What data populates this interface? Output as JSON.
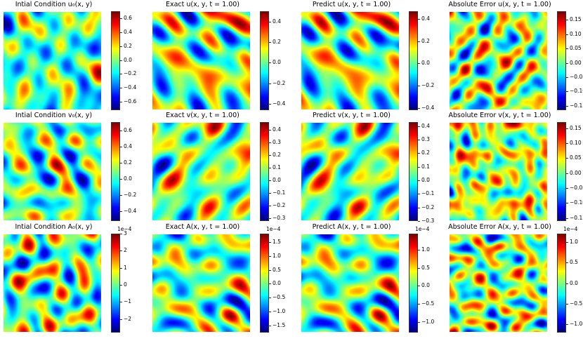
{
  "chart_data": {
    "type": "heatmap",
    "colormap": "jet",
    "rows": 3,
    "cols": 4,
    "panels": [
      {
        "title": "Intial Condition u₀(x, y)",
        "ticks": [
          "0.6",
          "0.4",
          "0.2",
          "0.0",
          "−0.2",
          "−0.4",
          "−0.6"
        ],
        "tick_values": [
          0.6,
          0.4,
          0.2,
          0.0,
          -0.2,
          -0.4,
          -0.6
        ],
        "range": [
          -0.72,
          0.7
        ],
        "offset": "",
        "seed": 11
      },
      {
        "title": "Exact u(x, y, t = 1.00)",
        "ticks": [
          "0.4",
          "0.2",
          "0.0",
          "−0.2",
          "−0.4"
        ],
        "tick_values": [
          0.4,
          0.2,
          0.0,
          -0.2,
          -0.4
        ],
        "range": [
          -0.46,
          0.5
        ],
        "offset": "",
        "seed": 23
      },
      {
        "title": "Predict u(x, y, t = 1.00)",
        "ticks": [
          "0.4",
          "0.2",
          "0.0",
          "−0.2",
          "−0.4"
        ],
        "tick_values": [
          0.4,
          0.2,
          0.0,
          -0.2,
          -0.4
        ],
        "range": [
          -0.42,
          0.47
        ],
        "offset": "",
        "seed": 23
      },
      {
        "title": "Absolute Error u(x, y, t = 1.00)",
        "ticks": [
          "0.15",
          "0.10",
          "0.05",
          "0.00",
          "−0.05",
          "−0.10",
          "−0.15"
        ],
        "tick_values": [
          0.15,
          0.1,
          0.05,
          0.0,
          -0.05,
          -0.1,
          -0.15
        ],
        "range": [
          -0.165,
          0.18
        ],
        "offset": "",
        "seed": 37
      },
      {
        "title": "Intial Condition v₀(x, y)",
        "ticks": [
          "0.6",
          "0.4",
          "0.2",
          "0.0",
          "−0.2",
          "−0.4"
        ],
        "tick_values": [
          0.6,
          0.4,
          0.2,
          0.0,
          -0.2,
          -0.4
        ],
        "range": [
          -0.52,
          0.7
        ],
        "offset": "",
        "seed": 41
      },
      {
        "title": "Exact v(x, y, t = 1.00)",
        "ticks": [
          "0.4",
          "0.3",
          "0.2",
          "0.1",
          "0.0",
          "−0.1",
          "−0.2",
          "−0.3"
        ],
        "tick_values": [
          0.4,
          0.3,
          0.2,
          0.1,
          0.0,
          -0.1,
          -0.2,
          -0.3
        ],
        "range": [
          -0.32,
          0.46
        ],
        "offset": "",
        "seed": 53
      },
      {
        "title": "Predict v(x, y, t = 1.00)",
        "ticks": [
          "0.4",
          "0.3",
          "0.2",
          "0.1",
          "0.0",
          "−0.1",
          "−0.2",
          "−0.3"
        ],
        "tick_values": [
          0.4,
          0.3,
          0.2,
          0.1,
          0.0,
          -0.1,
          -0.2,
          -0.3
        ],
        "range": [
          -0.3,
          0.43
        ],
        "offset": "",
        "seed": 53
      },
      {
        "title": "Absolute Error v(x, y, t = 1.00)",
        "ticks": [
          "0.15",
          "0.10",
          "0.05",
          "0.00",
          "−0.05",
          "−0.10",
          "−0.15"
        ],
        "tick_values": [
          0.15,
          0.1,
          0.05,
          0.0,
          -0.05,
          -0.1,
          -0.15
        ],
        "range": [
          -0.16,
          0.17
        ],
        "offset": "",
        "seed": 67
      },
      {
        "title": "Intial Condition A₀(x, y)",
        "ticks": [
          "3",
          "2",
          "1",
          "0",
          "−1",
          "−2"
        ],
        "tick_values": [
          3,
          2,
          1,
          0,
          -1,
          -2
        ],
        "range": [
          -2.8,
          3.0
        ],
        "offset": "1e−4",
        "seed": 71
      },
      {
        "title": "Exact A(x, y, t = 1.00)",
        "ticks": [
          "1.5",
          "1.0",
          "0.5",
          "0.0",
          "−0.5",
          "−1.0",
          "−1.5"
        ],
        "tick_values": [
          1.5,
          1.0,
          0.5,
          0.0,
          -0.5,
          -1.0,
          -1.5
        ],
        "range": [
          -1.75,
          1.8
        ],
        "offset": "1e−4",
        "seed": 83
      },
      {
        "title": "Predict A(x, y, t = 1.00)",
        "ticks": [
          "1.0",
          "0.5",
          "0.0",
          "−0.5",
          "−1.0"
        ],
        "tick_values": [
          1.0,
          0.5,
          0.0,
          -0.5,
          -1.0
        ],
        "range": [
          -1.3,
          1.45
        ],
        "offset": "1e−4",
        "seed": 83
      },
      {
        "title": "Absolute Error A(x, y, t = 1.00)",
        "ticks": [
          "1.0",
          "0.5",
          "0.0",
          "−0.5",
          "−1.0"
        ],
        "tick_values": [
          1.0,
          0.5,
          0.0,
          -0.5,
          -1.0
        ],
        "range": [
          -1.2,
          1.2
        ],
        "offset": "1e−4",
        "seed": 97
      }
    ]
  }
}
